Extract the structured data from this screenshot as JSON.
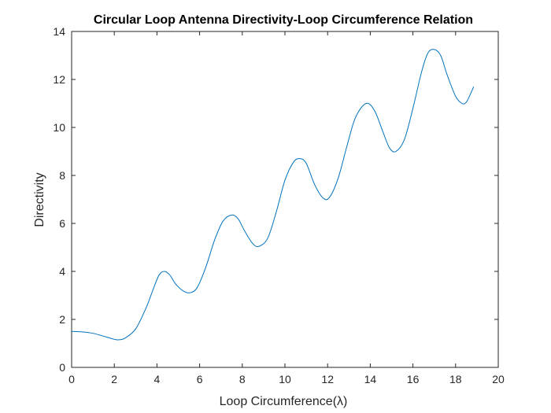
{
  "chart_data": {
    "type": "line",
    "title": "Circular Loop Antenna Directivity-Loop Circumference Relation",
    "xlabel": "Loop Circumference(λ)",
    "ylabel": "Directivity",
    "xlim": [
      0,
      20
    ],
    "ylim": [
      0,
      14
    ],
    "xticks": [
      0,
      2,
      4,
      6,
      8,
      10,
      12,
      14,
      16,
      18,
      20
    ],
    "yticks": [
      0,
      2,
      4,
      6,
      8,
      10,
      12,
      14
    ],
    "grid": false,
    "line_color": "#0072BD",
    "series": [
      {
        "x": [
          0,
          0.5,
          1.0,
          1.5,
          2.0,
          2.2,
          2.5,
          3.0,
          3.5,
          3.8,
          4.1,
          4.35,
          4.6,
          4.9,
          5.3,
          5.6,
          5.9,
          6.3,
          6.7,
          7.1,
          7.5,
          7.8,
          8.1,
          8.5,
          8.8,
          9.2,
          9.6,
          10.0,
          10.4,
          10.7,
          11.0,
          11.4,
          11.8,
          12.1,
          12.5,
          12.9,
          13.3,
          13.8,
          14.2,
          14.6,
          14.9,
          15.2,
          15.6,
          16.0,
          16.4,
          16.7,
          17.0,
          17.3,
          17.6,
          18.0,
          18.3,
          18.5,
          18.7,
          18.85
        ],
        "y": [
          1.5,
          1.48,
          1.42,
          1.3,
          1.17,
          1.15,
          1.22,
          1.6,
          2.5,
          3.2,
          3.85,
          4.0,
          3.85,
          3.45,
          3.15,
          3.12,
          3.35,
          4.2,
          5.3,
          6.1,
          6.35,
          6.2,
          5.7,
          5.15,
          5.05,
          5.4,
          6.5,
          7.8,
          8.55,
          8.7,
          8.5,
          7.6,
          7.05,
          7.1,
          7.9,
          9.2,
          10.4,
          11.0,
          10.7,
          9.8,
          9.15,
          9.0,
          9.5,
          10.8,
          12.3,
          13.1,
          13.25,
          13.0,
          12.2,
          11.3,
          11.0,
          11.05,
          11.4,
          11.7
        ]
      }
    ]
  }
}
